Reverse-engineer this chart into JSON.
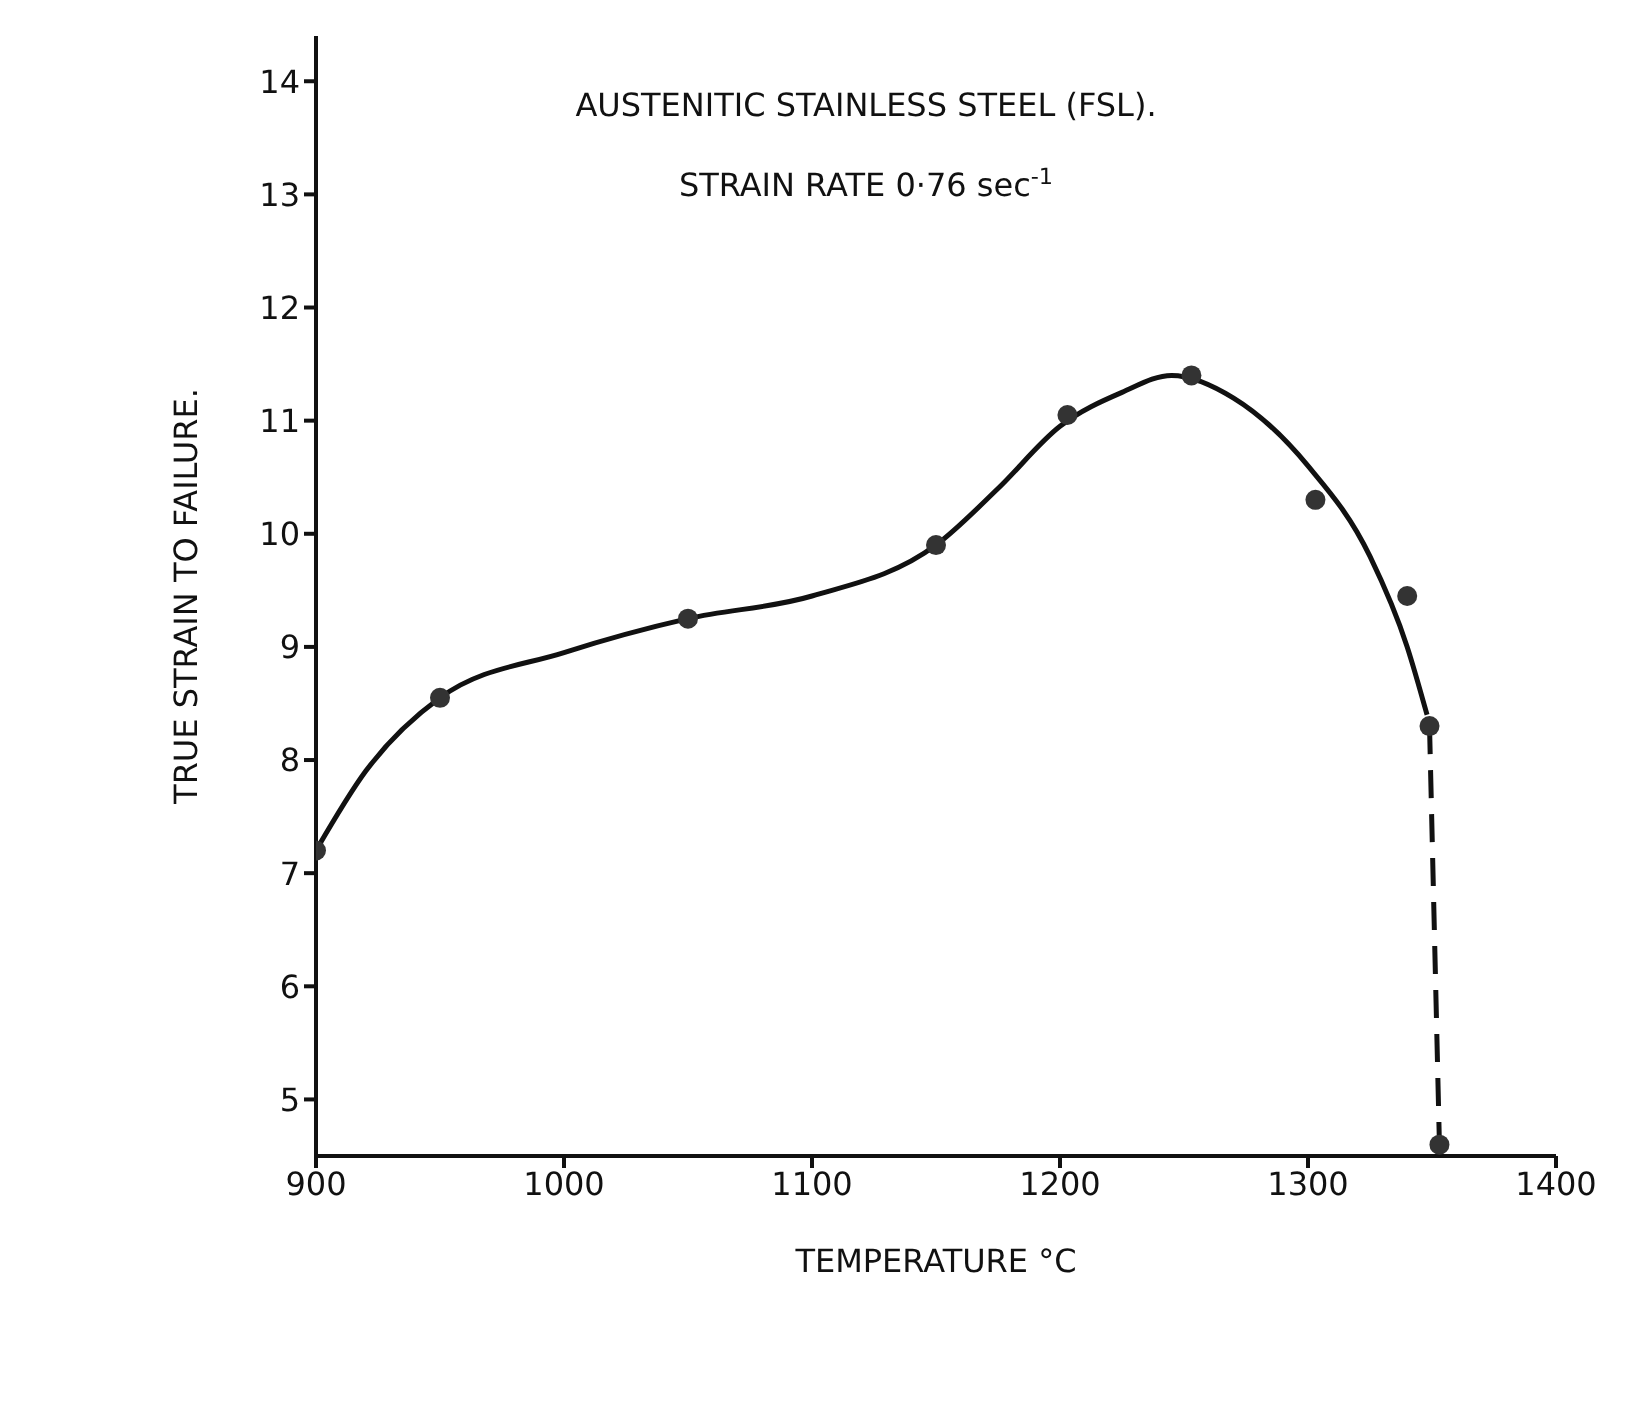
{
  "chart_data": {
    "type": "scatter",
    "title": "AUSTENITIC STAINLESS STEEL (FSL).",
    "subtitle": "STRAIN RATE 0·76 sec$^{-1}$",
    "xlabel": "TEMPERATURE °C",
    "ylabel": "TRUE STRAIN TO FAILURE.",
    "xlim": [
      900,
      1400
    ],
    "xticks": [
      900,
      1000,
      1100,
      1200,
      1300,
      1400
    ],
    "ylim": [
      4.5,
      14.4
    ],
    "yticks": [
      5,
      6,
      7,
      8,
      9,
      10,
      11,
      12,
      13,
      14
    ],
    "grid": false,
    "series": [
      {
        "color": "#333333",
        "marker": "circle",
        "x": [
          900,
          950,
          1050,
          1150,
          1203,
          1253,
          1303,
          1340,
          1349,
          1353
        ],
        "values": [
          7.2,
          8.55,
          9.25,
          9.9,
          11.05,
          11.4,
          10.3,
          9.45,
          8.3,
          4.6
        ]
      },
      {
        "type": "line",
        "color": "#111111",
        "marker": "none",
        "line_style": "solid",
        "x": [
          900,
          920,
          950,
          1000,
          1050,
          1100,
          1150,
          1175,
          1200,
          1225,
          1245,
          1270,
          1300,
          1325,
          1340,
          1348
        ],
        "values": [
          7.2,
          7.9,
          8.55,
          8.95,
          9.25,
          9.45,
          9.9,
          10.4,
          10.95,
          11.25,
          11.4,
          11.2,
          10.6,
          9.8,
          9.0,
          8.4
        ]
      },
      {
        "type": "line",
        "color": "#111111",
        "marker": "none",
        "line_style": "dashed",
        "x": [
          1349,
          1353
        ],
        "values": [
          8.3,
          4.6
        ]
      }
    ]
  }
}
